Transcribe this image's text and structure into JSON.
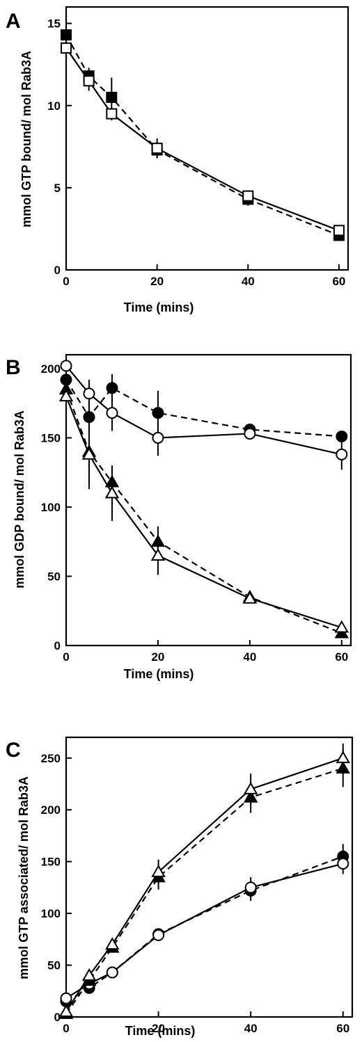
{
  "chart_data": [
    {
      "panel": "A",
      "type": "line",
      "xlabel": "Time (mins)",
      "ylabel": "mmol GTP bound/ mol Rab3A",
      "xlim": [
        0,
        62
      ],
      "ylim": [
        0,
        16
      ],
      "xticks": [
        0,
        20,
        40,
        60
      ],
      "yticks": [
        0,
        5,
        10,
        15
      ],
      "series": [
        {
          "marker": "square",
          "fill": "filled",
          "dash": true,
          "points": [
            [
              0,
              14.3,
              0.3
            ],
            [
              5,
              11.8,
              0.5
            ],
            [
              10,
              10.5,
              1.2
            ],
            [
              20,
              7.3,
              0.5
            ],
            [
              40,
              4.3,
              0.4
            ],
            [
              60,
              2.1,
              0.2
            ]
          ]
        },
        {
          "marker": "square",
          "fill": "open",
          "dash": false,
          "points": [
            [
              0,
              13.5,
              0.3
            ],
            [
              5,
              11.5,
              0.6
            ],
            [
              10,
              9.5,
              0.4
            ],
            [
              20,
              7.4,
              0.6
            ],
            [
              40,
              4.5,
              0.3
            ],
            [
              60,
              2.4,
              0.2
            ]
          ]
        }
      ]
    },
    {
      "panel": "B",
      "type": "line",
      "xlabel": "Time (mins)",
      "ylabel": "mmol GDP bound/ mol Rab3A",
      "xlim": [
        0,
        62
      ],
      "ylim": [
        0,
        210
      ],
      "xticks": [
        0,
        20,
        40,
        60
      ],
      "yticks": [
        0,
        50,
        100,
        150,
        200
      ],
      "series": [
        {
          "marker": "circle",
          "fill": "filled",
          "dash": true,
          "points": [
            [
              0,
              192,
              4
            ],
            [
              5,
              165,
              12
            ],
            [
              10,
              186,
              10
            ],
            [
              20,
              168,
              16
            ],
            [
              40,
              156,
              3
            ],
            [
              60,
              151,
              3
            ]
          ]
        },
        {
          "marker": "circle",
          "fill": "open",
          "dash": false,
          "points": [
            [
              0,
              202,
              3
            ],
            [
              5,
              182,
              10
            ],
            [
              10,
              168,
              13
            ],
            [
              20,
              150,
              13
            ],
            [
              40,
              153,
              3
            ],
            [
              60,
              138,
              11
            ]
          ]
        },
        {
          "marker": "triangle",
          "fill": "filled",
          "dash": true,
          "points": [
            [
              0,
              185,
              4
            ],
            [
              5,
              140,
              10
            ],
            [
              10,
              118,
              12
            ],
            [
              20,
              75,
              11
            ],
            [
              40,
              35,
              3
            ],
            [
              60,
              9,
              2
            ]
          ]
        },
        {
          "marker": "triangle",
          "fill": "open",
          "dash": false,
          "points": [
            [
              0,
              180,
              4
            ],
            [
              5,
              138,
              25
            ],
            [
              10,
              110,
              20
            ],
            [
              20,
              65,
              14
            ],
            [
              40,
              34,
              3
            ],
            [
              60,
              13,
              2
            ]
          ]
        }
      ]
    },
    {
      "panel": "C",
      "type": "line",
      "xlabel": "Time (mins)",
      "ylabel": "mmol GTP associated/ mol Rab3A",
      "xlim": [
        0,
        62
      ],
      "ylim": [
        0,
        270
      ],
      "xticks": [
        0,
        20,
        40,
        60
      ],
      "yticks": [
        0,
        50,
        100,
        150,
        200,
        250
      ],
      "series": [
        {
          "marker": "circle",
          "fill": "filled",
          "dash": true,
          "points": [
            [
              0,
              15,
              3
            ],
            [
              5,
              28,
              3
            ],
            [
              10,
              43,
              3
            ],
            [
              20,
              80,
              3
            ],
            [
              40,
              122,
              10
            ],
            [
              60,
              155,
              12
            ]
          ]
        },
        {
          "marker": "circle",
          "fill": "open",
          "dash": false,
          "points": [
            [
              0,
              18,
              3
            ],
            [
              5,
              32,
              3
            ],
            [
              10,
              43,
              3
            ],
            [
              20,
              79,
              3
            ],
            [
              40,
              125,
              10
            ],
            [
              60,
              148,
              10
            ]
          ]
        },
        {
          "marker": "triangle",
          "fill": "filled",
          "dash": true,
          "points": [
            [
              0,
              3,
              2
            ],
            [
              5,
              35,
              4
            ],
            [
              10,
              67,
              5
            ],
            [
              20,
              135,
              12
            ],
            [
              40,
              212,
              15
            ],
            [
              60,
              240,
              18
            ]
          ]
        },
        {
          "marker": "triangle",
          "fill": "open",
          "dash": false,
          "points": [
            [
              0,
              5,
              2
            ],
            [
              5,
              40,
              4
            ],
            [
              10,
              70,
              5
            ],
            [
              20,
              140,
              12
            ],
            [
              40,
              220,
              15
            ],
            [
              60,
              250,
              14
            ]
          ]
        }
      ]
    }
  ]
}
